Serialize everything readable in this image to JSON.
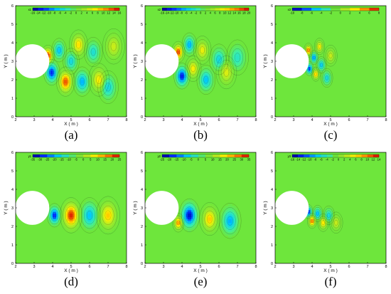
{
  "chart_data": [
    {
      "type": "heatmap",
      "caption": "(a)",
      "legend_title": "x1",
      "legend_ticks": [
        "-16",
        "-14",
        "-12",
        "-10",
        "-8",
        "-6",
        "-4",
        "-2",
        "0",
        "2",
        "4",
        "6",
        "8",
        "10",
        "12",
        "14",
        "16"
      ],
      "xlabel": "X ( m )",
      "ylabel": "Y ( m )",
      "xlim": [
        2,
        8
      ],
      "ylim": [
        0,
        6
      ],
      "xticks": [
        "2",
        "3",
        "4",
        "5",
        "6",
        "7",
        "8"
      ],
      "yticks": [
        "0",
        "1",
        "2",
        "3",
        "4",
        "5",
        "6"
      ],
      "cylinder": {
        "x": 2.9,
        "y": 3.0,
        "r": 0.9
      },
      "blobs": [
        {
          "x": 3.75,
          "y": 3.3,
          "v": 0.95,
          "s": 0.18
        },
        {
          "x": 3.95,
          "y": 2.4,
          "v": -0.8,
          "s": 0.22
        },
        {
          "x": 4.35,
          "y": 3.6,
          "v": -0.45,
          "s": 0.2
        },
        {
          "x": 4.7,
          "y": 1.9,
          "v": 0.85,
          "s": 0.25
        },
        {
          "x": 5.0,
          "y": 3.0,
          "v": -0.35,
          "s": 0.22
        },
        {
          "x": 5.4,
          "y": 3.9,
          "v": 0.5,
          "s": 0.25
        },
        {
          "x": 5.6,
          "y": 1.9,
          "v": -0.5,
          "s": 0.25
        },
        {
          "x": 6.2,
          "y": 3.5,
          "v": -0.3,
          "s": 0.25
        },
        {
          "x": 6.5,
          "y": 2.0,
          "v": 0.45,
          "s": 0.28
        },
        {
          "x": 7.0,
          "y": 1.6,
          "v": -0.35,
          "s": 0.28
        },
        {
          "x": 7.3,
          "y": 3.8,
          "v": 0.3,
          "s": 0.3
        }
      ]
    },
    {
      "type": "heatmap",
      "caption": "(b)",
      "legend_title": "x2",
      "legend_ticks": [
        "-16",
        "-14",
        "-12",
        "-10",
        "-8",
        "-6",
        "-4",
        "-2",
        "0",
        "2",
        "4",
        "6",
        "8",
        "10",
        "12",
        "14",
        "16",
        "18",
        "20"
      ],
      "xlabel": "X ( m )",
      "ylabel": "Y ( m )",
      "xlim": [
        2,
        8
      ],
      "ylim": [
        0,
        6
      ],
      "xticks": [
        "2",
        "3",
        "4",
        "5",
        "6",
        "7",
        "8"
      ],
      "yticks": [
        "0",
        "1",
        "2",
        "3",
        "4",
        "5",
        "6"
      ],
      "cylinder": {
        "x": 2.9,
        "y": 3.0,
        "r": 0.9
      },
      "blobs": [
        {
          "x": 3.8,
          "y": 3.5,
          "v": 0.9,
          "s": 0.18
        },
        {
          "x": 4.0,
          "y": 2.2,
          "v": -0.85,
          "s": 0.22
        },
        {
          "x": 4.4,
          "y": 3.9,
          "v": -0.5,
          "s": 0.2
        },
        {
          "x": 4.6,
          "y": 2.6,
          "v": 0.45,
          "s": 0.22
        },
        {
          "x": 5.1,
          "y": 3.6,
          "v": 0.4,
          "s": 0.24
        },
        {
          "x": 5.3,
          "y": 2.0,
          "v": -0.45,
          "s": 0.25
        },
        {
          "x": 6.0,
          "y": 3.1,
          "v": -0.35,
          "s": 0.26
        },
        {
          "x": 6.4,
          "y": 2.4,
          "v": 0.35,
          "s": 0.28
        },
        {
          "x": 7.0,
          "y": 3.2,
          "v": -0.25,
          "s": 0.3
        }
      ]
    },
    {
      "type": "heatmap",
      "caption": "(c)",
      "legend_title": "x3",
      "legend_ticks": [
        "-10",
        "-8",
        "-6",
        "-4",
        "-2",
        "0",
        "2",
        "4",
        "6",
        "8"
      ],
      "xlabel": "X ( m )",
      "ylabel": "Y ( m )",
      "xlim": [
        2,
        8
      ],
      "ylim": [
        0,
        6
      ],
      "xticks": [
        "2",
        "3",
        "4",
        "5",
        "6",
        "7",
        "8"
      ],
      "yticks": [
        "0",
        "1",
        "2",
        "3",
        "4",
        "5",
        "6"
      ],
      "cylinder": {
        "x": 2.9,
        "y": 3.0,
        "r": 0.9
      },
      "blobs": [
        {
          "x": 3.8,
          "y": 3.6,
          "v": 0.8,
          "s": 0.12
        },
        {
          "x": 3.85,
          "y": 2.6,
          "v": -0.75,
          "s": 0.12
        },
        {
          "x": 4.1,
          "y": 3.2,
          "v": -0.6,
          "s": 0.12
        },
        {
          "x": 4.2,
          "y": 2.3,
          "v": 0.6,
          "s": 0.12
        },
        {
          "x": 4.4,
          "y": 3.8,
          "v": 0.45,
          "s": 0.14
        },
        {
          "x": 4.5,
          "y": 2.8,
          "v": -0.45,
          "s": 0.14
        },
        {
          "x": 4.8,
          "y": 2.1,
          "v": -0.35,
          "s": 0.16
        },
        {
          "x": 5.0,
          "y": 3.3,
          "v": 0.3,
          "s": 0.18
        }
      ]
    },
    {
      "type": "heatmap",
      "caption": "(d)",
      "legend_title": "y1",
      "legend_ticks": [
        "-35",
        "-30",
        "-25",
        "-20",
        "-15",
        "-10",
        "-5",
        "0",
        "5",
        "10",
        "15",
        "20",
        "25"
      ],
      "xlabel": "X ( m )",
      "ylabel": "Y ( m )",
      "xlim": [
        2,
        8
      ],
      "ylim": [
        0,
        6
      ],
      "xticks": [
        "2",
        "3",
        "4",
        "5",
        "6",
        "7",
        "8"
      ],
      "yticks": [
        "0",
        "1",
        "2",
        "3",
        "4",
        "5",
        "6"
      ],
      "cylinder": {
        "x": 2.9,
        "y": 3.0,
        "r": 0.9
      },
      "blobs": [
        {
          "x": 4.1,
          "y": 2.6,
          "v": -0.8,
          "s": 0.2
        },
        {
          "x": 5.0,
          "y": 2.6,
          "v": 0.95,
          "s": 0.3
        },
        {
          "x": 6.0,
          "y": 2.6,
          "v": -0.45,
          "s": 0.3
        },
        {
          "x": 7.0,
          "y": 2.6,
          "v": 0.55,
          "s": 0.32
        }
      ]
    },
    {
      "type": "heatmap",
      "caption": "(e)",
      "legend_title": "y2",
      "legend_ticks": [
        "-25",
        "-20",
        "-15",
        "-10",
        "-5",
        "0",
        "5",
        "10",
        "15",
        "20",
        "25",
        "30",
        "35"
      ],
      "xlabel": "X ( m )",
      "ylabel": "Y ( m )",
      "xlim": [
        2,
        8
      ],
      "ylim": [
        0,
        6
      ],
      "xticks": [
        "2",
        "3",
        "4",
        "5",
        "6",
        "7",
        "8"
      ],
      "yticks": [
        "0",
        "1",
        "2",
        "3",
        "4",
        "5",
        "6"
      ],
      "cylinder": {
        "x": 2.9,
        "y": 3.0,
        "r": 0.9
      },
      "blobs": [
        {
          "x": 3.8,
          "y": 2.2,
          "v": 0.7,
          "s": 0.16
        },
        {
          "x": 4.4,
          "y": 2.6,
          "v": -0.9,
          "s": 0.28
        },
        {
          "x": 5.5,
          "y": 2.4,
          "v": 0.55,
          "s": 0.28
        },
        {
          "x": 6.6,
          "y": 2.3,
          "v": -0.5,
          "s": 0.3
        }
      ]
    },
    {
      "type": "heatmap",
      "caption": "(f)",
      "legend_title": "y3",
      "legend_ticks": [
        "-16",
        "-14",
        "-12",
        "-10",
        "-8",
        "-6",
        "-4",
        "-2",
        "0",
        "2",
        "4",
        "6",
        "8",
        "10",
        "12",
        "14"
      ],
      "xlabel": "X ( m )",
      "ylabel": "Y ( m )",
      "xlim": [
        2,
        8
      ],
      "ylim": [
        0,
        6
      ],
      "xticks": [
        "2",
        "3",
        "4",
        "5",
        "6",
        "7",
        "8"
      ],
      "yticks": [
        "0",
        "1",
        "2",
        "3",
        "4",
        "5",
        "6"
      ],
      "cylinder": {
        "x": 2.9,
        "y": 3.0,
        "r": 0.9
      },
      "blobs": [
        {
          "x": 3.8,
          "y": 2.8,
          "v": -0.85,
          "s": 0.12
        },
        {
          "x": 4.0,
          "y": 2.3,
          "v": 0.8,
          "s": 0.13
        },
        {
          "x": 4.3,
          "y": 2.7,
          "v": -0.5,
          "s": 0.14
        },
        {
          "x": 4.6,
          "y": 2.2,
          "v": 0.5,
          "s": 0.15
        },
        {
          "x": 4.9,
          "y": 2.6,
          "v": -0.35,
          "s": 0.16
        },
        {
          "x": 5.3,
          "y": 2.2,
          "v": 0.3,
          "s": 0.18
        }
      ]
    }
  ]
}
